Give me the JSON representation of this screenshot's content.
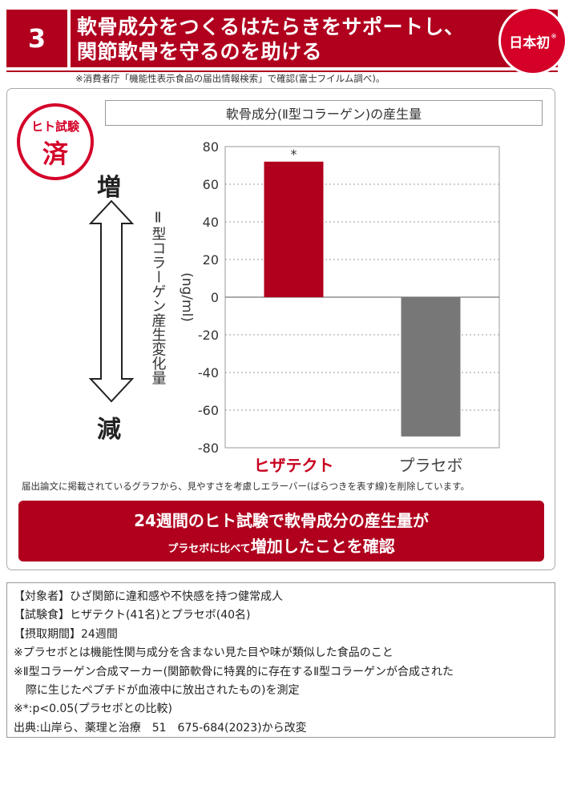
{
  "header": {
    "number": "3",
    "title_line1": "軟骨成分をつくるはたらきをサポートし、",
    "title_line2": "関節軟骨を守るのを助ける",
    "badge": "日本初",
    "badge_mark": "※"
  },
  "source_note": "※消費者庁「機能性表示食品の届出情報検索」で確認(富士フイルム調べ)。",
  "stamp": {
    "line1": "ヒト試験",
    "line2": "済"
  },
  "arrow": {
    "up_label": "増",
    "down_label": "減"
  },
  "chart_data": {
    "type": "bar",
    "title": "軟骨成分(Ⅱ型コラーゲン)の産生量",
    "ylabel": "Ⅱ型コラーゲン産生変化量",
    "yunit": "(ng/ml)",
    "categories": [
      "ヒザテクト",
      "プラセボ"
    ],
    "values": [
      72,
      -74
    ],
    "colors": [
      "#b0001e",
      "#777777"
    ],
    "label_colors": [
      "#c8001e",
      "#444444"
    ],
    "ylim": [
      -80,
      80
    ],
    "yticks": [
      80,
      60,
      40,
      20,
      0,
      -20,
      -40,
      -60,
      -80
    ],
    "tick_labels": [
      "80",
      "60",
      "40",
      "20",
      "0",
      "-20",
      "-40",
      "-60",
      "-80"
    ],
    "grid": true,
    "annotations": [
      "*"
    ]
  },
  "disclaimer": "届出論文に掲載されているグラフから、見やすさを考慮しエラーバー(ばらつきを表す線)を削除しています。",
  "result": {
    "line1": "24週間のヒト試験で軟骨成分の産生量が",
    "line2_small": "プラセボに比べて",
    "line2_big": "増加したことを確認"
  },
  "info": {
    "lines": [
      "【対象者】ひざ関節に違和感や不快感を持つ健常成人",
      "【試験食】ヒザテクト(41名)とプラセボ(40名)",
      "【摂取期間】24週間",
      "※プラセボとは機能性関与成分を含まない見た目や味が類似した食品のこと",
      "※Ⅱ型コラーゲン合成マーカー(関節軟骨に特異的に存在するⅡ型コラーゲンが合成された",
      "際に生じたペプチドが血液中に放出されたもの)を測定",
      "※*:p<0.05(プラセボとの比較)",
      "出典:山岸ら、薬理と治療　51　675-684(2023)から改変"
    ]
  }
}
